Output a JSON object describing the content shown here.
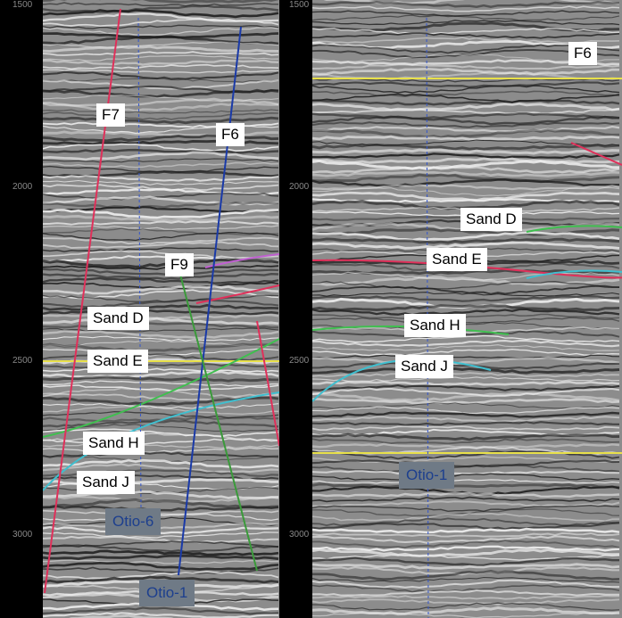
{
  "left_panel": {
    "depth_ticks": [
      1500,
      2000,
      2500,
      3000
    ],
    "labels": {
      "f7": "F7",
      "f6": "F6",
      "f9": "F9",
      "sand_d": "Sand D",
      "sand_e": "Sand E",
      "sand_h": "Sand H",
      "sand_j": "Sand J",
      "well_a": "Otio-6",
      "well_b": "Otio-1"
    }
  },
  "right_panel": {
    "depth_ticks": [
      1500,
      2000,
      2500,
      3000
    ],
    "labels": {
      "f6": "F6",
      "sand_d": "Sand D",
      "sand_e": "Sand E",
      "sand_h": "Sand H",
      "sand_j": "Sand J",
      "well": "Otio-1"
    }
  }
}
